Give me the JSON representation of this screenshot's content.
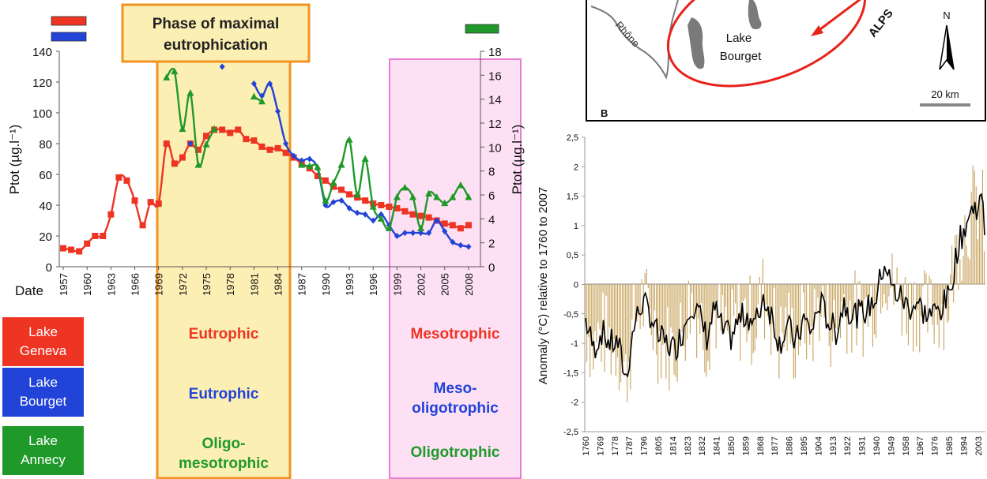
{
  "phases": {
    "maximal_title_line1": "Phase of maximal",
    "maximal_title_line2": "eutrophication"
  },
  "lakes": [
    {
      "name_line1": "Lake",
      "name_line2": "Geneva",
      "color": "#ee3423"
    },
    {
      "name_line1": "Lake",
      "name_line2": "Bourget",
      "color": "#2143d8"
    },
    {
      "name_line1": "Lake",
      "name_line2": "Annecy",
      "color": "#1f9a2a"
    }
  ],
  "states": {
    "eutrophic_geneva": "Eutrophic",
    "eutrophic_bourget": "Eutrophic",
    "oligo_meso_line1": "Oligo-",
    "oligo_meso_line2": "mesotrophic",
    "mesotrophic_geneva": "Mesotrophic",
    "meso_oligo_line1": "Meso-",
    "meso_oligo_line2": "oligotrophic",
    "oligotrophic_annecy": "Oligotrophic"
  },
  "map": {
    "river_label": "Rhône",
    "lake_label_line1": "Lake",
    "lake_label_line2": "Bourget",
    "mountains_label": "ALPS",
    "north_label": "N",
    "scale_label": "20 km",
    "panel_label": "B"
  },
  "chart_data": [
    {
      "type": "line",
      "title": "",
      "xlabel": "Date",
      "ylabel": "Ptot (µg.l⁻¹)",
      "ylabel_right": "Ptot (µg.l⁻¹)",
      "ylim": [
        0,
        140
      ],
      "ylim_right": [
        0,
        18
      ],
      "yticks": [
        "0",
        "20",
        "40",
        "60",
        "80",
        "100",
        "120",
        "140"
      ],
      "yticks_right": [
        "0",
        "2",
        "4",
        "6",
        "8",
        "10",
        "12",
        "14",
        "16",
        "18"
      ],
      "xticks": [
        "1957",
        "1960",
        "1963",
        "1966",
        "1969",
        "1972",
        "1975",
        "1978",
        "1981",
        "1984",
        "1987",
        "1990",
        "1993",
        "1996",
        "1999",
        "2002",
        "2005",
        "2008"
      ],
      "series": [
        {
          "lake": "Lake Geneva",
          "color": "#ee3423",
          "marker": "square",
          "axis": "left",
          "x": [
            1957,
            1958,
            1959,
            1960,
            1961,
            1962,
            1963,
            1964,
            1965,
            1966,
            1967,
            1968,
            1969,
            1970,
            1971,
            1972,
            1973,
            1974,
            1975,
            1976,
            1977,
            1978,
            1979,
            1980,
            1981,
            1982,
            1983,
            1984,
            1985,
            1986,
            1987,
            1988,
            1989,
            1990,
            1991,
            1992,
            1993,
            1994,
            1995,
            1996,
            1997,
            1998,
            1999,
            2000,
            2001,
            2002,
            2003,
            2004,
            2005,
            2006,
            2007,
            2008
          ],
          "values": [
            12,
            11,
            10,
            15,
            20,
            20,
            34,
            58,
            56,
            43,
            27,
            42,
            41,
            80,
            67,
            71,
            80,
            76,
            85,
            89,
            89,
            87,
            89,
            83,
            82,
            78,
            76,
            77,
            74,
            71,
            67,
            64,
            59,
            56,
            52,
            50,
            47,
            45,
            43,
            41,
            40,
            39,
            38,
            36,
            34,
            33,
            32,
            30,
            28,
            27,
            25,
            27
          ]
        },
        {
          "lake": "Lake Bourget",
          "color": "#2143d8",
          "marker": "diamond",
          "axis": "left",
          "x": [
            1973,
            1977,
            1981,
            1982,
            1983,
            1984,
            1985,
            1986,
            1987,
            1988,
            1989,
            1990,
            1991,
            1992,
            1993,
            1994,
            1995,
            1996,
            1997,
            1998,
            1999,
            2000,
            2001,
            2002,
            2003,
            2004,
            2005,
            2006,
            2007,
            2008
          ],
          "values": [
            80,
            130,
            119,
            111,
            119,
            101,
            80,
            72,
            69,
            70,
            64,
            40,
            42,
            43,
            38,
            35,
            34,
            30,
            34,
            27,
            20,
            22,
            22,
            22,
            22,
            30,
            23,
            16,
            14,
            13
          ]
        },
        {
          "lake": "Lake Annecy",
          "color": "#1f9a2a",
          "marker": "triangle",
          "axis": "right",
          "x": [
            1970,
            1971,
            1972,
            1973,
            1974,
            1975,
            1976,
            1981,
            1982,
            1987,
            1988,
            1989,
            1990,
            1991,
            1992,
            1993,
            1994,
            1995,
            1996,
            1997,
            1998,
            1999,
            2000,
            2001,
            2002,
            2003,
            2004,
            2005,
            2006,
            2007,
            2008
          ],
          "values": [
            15.8,
            16.3,
            11.5,
            14.5,
            8.5,
            10.2,
            11.5,
            14.2,
            13.8,
            8.5,
            8.4,
            8.3,
            5.5,
            7.0,
            8.5,
            10.6,
            6.0,
            9.0,
            5.0,
            4.0,
            3.2,
            5.8,
            6.6,
            5.8,
            3.2,
            6.1,
            5.8,
            5.3,
            5.8,
            6.8,
            5.8
          ]
        }
      ],
      "shaded_periods": [
        {
          "start": 1969,
          "end": 1984.8,
          "color": "#fcefb4",
          "label": "Phase of maximal eutrophication"
        },
        {
          "start": 1997.5,
          "end": 2009.5,
          "color": "#fde0f4"
        }
      ]
    },
    {
      "type": "bar",
      "title": "",
      "xlabel": "",
      "ylabel": "Anomaly (°C) relative to 1760 to 2007",
      "ylim": [
        -2.5,
        2.5
      ],
      "yticks": [
        "-2,5",
        "-2",
        "-1,5",
        "-1",
        "-0,5",
        "0",
        "0,5",
        "1",
        "1,5",
        "2",
        "2,5"
      ],
      "xticks": [
        "1760",
        "1769",
        "1778",
        "1787",
        "1796",
        "1805",
        "1814",
        "1823",
        "1832",
        "1841",
        "1850",
        "1859",
        "1868",
        "1877",
        "1886",
        "1895",
        "1904",
        "1913",
        "1922",
        "1931",
        "1940",
        "1949",
        "1958",
        "1967",
        "1976",
        "1985",
        "1994",
        "2003"
      ],
      "x_start": 1760,
      "x_end": 2007,
      "bar_color": "#c8a45e",
      "line_color": "#000000",
      "smoothed_anchor_years": [
        1760,
        1765,
        1770,
        1775,
        1780,
        1785,
        1790,
        1795,
        1800,
        1805,
        1810,
        1815,
        1820,
        1825,
        1830,
        1835,
        1840,
        1845,
        1850,
        1855,
        1860,
        1865,
        1870,
        1875,
        1880,
        1885,
        1890,
        1895,
        1900,
        1905,
        1910,
        1915,
        1920,
        1925,
        1930,
        1935,
        1940,
        1945,
        1950,
        1955,
        1960,
        1965,
        1970,
        1975,
        1980,
        1985,
        1990,
        1995,
        2000,
        2005,
        2007
      ],
      "smoothed_anchor_values": [
        -0.6,
        -1.1,
        -0.8,
        -1.0,
        -1.0,
        -1.6,
        -0.7,
        -0.3,
        -0.5,
        -0.9,
        -1.0,
        -1.1,
        -0.8,
        -0.3,
        -0.5,
        -0.9,
        -0.4,
        -0.8,
        -0.9,
        -0.6,
        -0.5,
        -0.7,
        -0.2,
        -0.5,
        -1.0,
        -0.7,
        -1.0,
        -0.6,
        -0.8,
        -0.3,
        -0.6,
        -0.8,
        -0.3,
        -0.5,
        -0.5,
        -0.4,
        -0.2,
        0.4,
        -0.1,
        -0.2,
        -0.4,
        -0.3,
        -0.5,
        -0.5,
        -0.4,
        -0.2,
        0.6,
        1.0,
        1.3,
        1.4,
        1.0
      ]
    }
  ]
}
